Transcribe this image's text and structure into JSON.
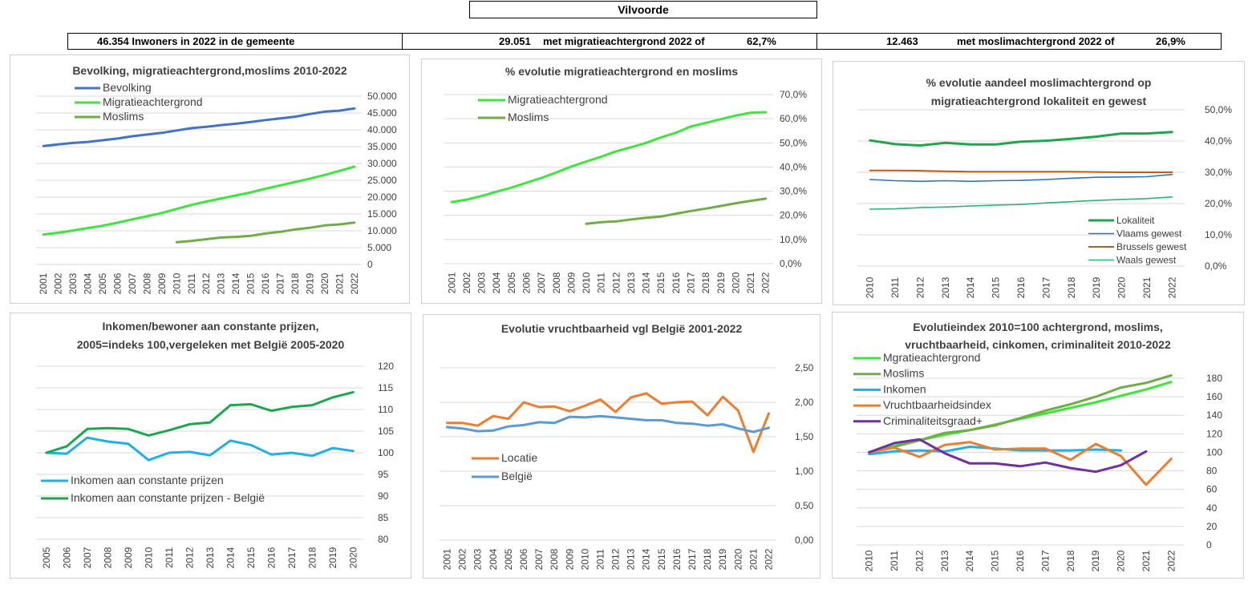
{
  "header": {
    "title": "Vilvoorde",
    "summary": [
      {
        "text": "46.354 Inwoners in 2022 in de gemeente"
      },
      {
        "num": "29.051",
        "text": "met migratieachtergrond 2022 of",
        "pct": "62,7%"
      },
      {
        "num": "12.463",
        "text": "met moslimachtergrond 2022 of",
        "pct": "26,9%"
      }
    ]
  },
  "chart_data": [
    {
      "type": "line",
      "title": [
        "Bevolking, migratieachtergrond,moslims  2010-2022"
      ],
      "x": [
        "2001",
        "2002",
        "2003",
        "2004",
        "2005",
        "2006",
        "2007",
        "2008",
        "2009",
        "2010",
        "2011",
        "2012",
        "2013",
        "2014",
        "2015",
        "2016",
        "2017",
        "2018",
        "2019",
        "2020",
        "2021",
        "2022"
      ],
      "ylim": [
        0,
        50000
      ],
      "yticks": [
        "0",
        "5.000",
        "10.000",
        "15.000",
        "20.000",
        "25.000",
        "30.000",
        "35.000",
        "40.000",
        "45.000",
        "50.000"
      ],
      "legend": "top-left",
      "series": [
        {
          "name": "Bevolking",
          "color": "#4472c4",
          "values": [
            35200,
            35700,
            36100,
            36400,
            36900,
            37400,
            38100,
            38600,
            39100,
            39800,
            40500,
            40900,
            41400,
            41800,
            42300,
            42900,
            43400,
            43900,
            44700,
            45400,
            45700,
            46354
          ]
        },
        {
          "name": "Migratieachtergrond",
          "color": "#3de63d",
          "values": [
            8900,
            9400,
            10100,
            10800,
            11500,
            12400,
            13400,
            14300,
            15300,
            16500,
            17700,
            18700,
            19600,
            20500,
            21400,
            22500,
            23500,
            24500,
            25500,
            26600,
            27800,
            29051
          ]
        },
        {
          "name": "Moslims",
          "color": "#70ad47",
          "values": [
            null,
            null,
            null,
            null,
            null,
            null,
            null,
            null,
            null,
            6600,
            7000,
            7500,
            8000,
            8200,
            8500,
            9200,
            9700,
            10400,
            10900,
            11600,
            11900,
            12463
          ]
        }
      ]
    },
    {
      "type": "line",
      "title": [
        "% evolutie migratieachtergrond  en moslims"
      ],
      "x": [
        "2001",
        "2002",
        "2003",
        "2004",
        "2005",
        "2006",
        "2007",
        "2008",
        "2009",
        "2010",
        "2011",
        "2012",
        "2013",
        "2014",
        "2015",
        "2016",
        "2017",
        "2018",
        "2019",
        "2020",
        "2021",
        "2022"
      ],
      "ylim": [
        0,
        70
      ],
      "yticks": [
        "0,0%",
        "10,0%",
        "20,0%",
        "30,0%",
        "40,0%",
        "50,0%",
        "60,0%",
        "70,0%"
      ],
      "legend": "top-left",
      "series": [
        {
          "name": "Migratieachtergrond",
          "color": "#3de63d",
          "values": [
            25.5,
            26.5,
            28,
            29.8,
            31.5,
            33.5,
            35.5,
            37.8,
            40.2,
            42.3,
            44.3,
            46.5,
            48.2,
            50,
            52.3,
            54.2,
            56.8,
            58.3,
            59.8,
            61.3,
            62.5,
            62.7
          ]
        },
        {
          "name": "Moslims",
          "color": "#70ad47",
          "values": [
            null,
            null,
            null,
            null,
            null,
            null,
            null,
            null,
            null,
            16.5,
            17.2,
            17.5,
            18.3,
            19,
            19.5,
            20.7,
            21.8,
            22.8,
            23.9,
            25,
            26,
            26.9
          ]
        }
      ]
    },
    {
      "type": "line",
      "title": [
        "% evolutie aandeel moslimachtergrond op",
        "migratieachtergrond lokaliteit en gewest"
      ],
      "x": [
        "2010",
        "2011",
        "2012",
        "2013",
        "2014",
        "2015",
        "2016",
        "2017",
        "2018",
        "2019",
        "2020",
        "2021",
        "2022"
      ],
      "ylim": [
        0,
        50
      ],
      "yticks": [
        "0,0%",
        "10,0%",
        "20,0%",
        "30,0%",
        "40,0%",
        "50,0%"
      ],
      "legend": "bottom-right",
      "series": [
        {
          "name": "Lokaliteit",
          "color": "#1fa64d",
          "width": 3,
          "values": [
            40.2,
            39,
            38.6,
            39.4,
            38.9,
            38.9,
            39.8,
            40.1,
            40.7,
            41.4,
            42.4,
            42.4,
            42.9
          ]
        },
        {
          "name": "Vlaams gewest",
          "color": "#2e75b6",
          "width": 1.6,
          "values": [
            27.7,
            27.3,
            27.1,
            27.3,
            27.1,
            27.3,
            27.4,
            27.7,
            28.1,
            28.4,
            28.5,
            28.6,
            29.3
          ]
        },
        {
          "name": "Brussels gewest",
          "color": "#c55a11",
          "width": 2,
          "values": [
            30.6,
            30.6,
            30.5,
            30.3,
            30.2,
            30.2,
            30.2,
            30.2,
            30.2,
            30.1,
            30,
            30,
            30
          ]
        },
        {
          "name": "Waals gewest",
          "color": "#2bb673",
          "width": 1.6,
          "values": [
            18.2,
            18.3,
            18.7,
            18.9,
            19.2,
            19.5,
            19.7,
            20.2,
            20.6,
            21,
            21.3,
            21.6,
            22.1
          ]
        }
      ]
    },
    {
      "type": "line",
      "title": [
        "Inkomen/bewoner aan constante prijzen,",
        "2005=indeks 100,vergeleken met België 2005-2020"
      ],
      "x": [
        "2005",
        "2006",
        "2007",
        "2008",
        "2009",
        "2010",
        "2011",
        "2012",
        "2013",
        "2014",
        "2015",
        "2016",
        "2017",
        "2018",
        "2019",
        "2020"
      ],
      "ylim": [
        80,
        120
      ],
      "yticks": [
        "80",
        "85",
        "90",
        "95",
        "100",
        "105",
        "110",
        "115",
        "120"
      ],
      "legend": "bottom-left",
      "series": [
        {
          "name": "Inkomen aan constante prijzen",
          "color": "#1fb0e6",
          "values": [
            100,
            99.8,
            103.5,
            102.6,
            102.1,
            98.3,
            100,
            100.2,
            99.4,
            102.8,
            101.8,
            99.6,
            100,
            99.3,
            101.1,
            100.4
          ]
        },
        {
          "name": "Inkomen aan constante prijzen - België",
          "color": "#1fa64d",
          "values": [
            100,
            101.5,
            105.5,
            105.7,
            105.5,
            104,
            105.2,
            106.6,
            107,
            111,
            111.2,
            109.7,
            110.6,
            111,
            112.8,
            114
          ]
        }
      ]
    },
    {
      "type": "line",
      "title": [
        "Evolutie vruchtbaarheid vgl België 2001-2022"
      ],
      "x": [
        "2001",
        "2002",
        "2003",
        "2004",
        "2005",
        "2006",
        "2007",
        "2008",
        "2009",
        "2010",
        "2011",
        "2012",
        "2013",
        "2014",
        "2015",
        "2016",
        "2017",
        "2018",
        "2019",
        "2020",
        "2021",
        "2022"
      ],
      "ylim": [
        0,
        2.5
      ],
      "yticks": [
        "0,00",
        "0,50",
        "1,00",
        "1,50",
        "2,00",
        "2,50"
      ],
      "legend": "left",
      "series": [
        {
          "name": "Locatie",
          "color": "#ed7d31",
          "values": [
            1.7,
            1.7,
            1.66,
            1.8,
            1.76,
            2,
            1.93,
            1.94,
            1.87,
            1.95,
            2.04,
            1.86,
            2.07,
            2.13,
            1.98,
            2,
            2.01,
            1.81,
            2.08,
            1.88,
            1.28,
            1.84
          ]
        },
        {
          "name": "België",
          "color": "#5b9bd5",
          "values": [
            1.64,
            1.62,
            1.58,
            1.59,
            1.65,
            1.67,
            1.71,
            1.7,
            1.79,
            1.78,
            1.8,
            1.78,
            1.76,
            1.74,
            1.74,
            1.7,
            1.69,
            1.66,
            1.68,
            1.62,
            1.57,
            1.63
          ]
        }
      ]
    },
    {
      "type": "line",
      "title": [
        "Evolutieindex 2010=100 achtergrond, moslims,",
        "vruchtbaarheid, cinkomen, criminaliteit  2010-2022"
      ],
      "x": [
        "2010",
        "2011",
        "2012",
        "2013",
        "2014",
        "2015",
        "2016",
        "2017",
        "2018",
        "2019",
        "2020",
        "2021",
        "2022"
      ],
      "ylim": [
        0,
        180
      ],
      "yticks": [
        "0",
        "20",
        "40",
        "60",
        "80",
        "100",
        "120",
        "140",
        "160",
        "180"
      ],
      "legend": "top-left",
      "series": [
        {
          "name": "Mgratieachtergrond",
          "color": "#3de63d",
          "values": [
            100,
            107,
            113,
            119,
            124,
            130,
            136,
            142,
            148,
            154,
            161,
            168,
            176
          ]
        },
        {
          "name": "Moslims",
          "color": "#70ad47",
          "values": [
            100,
            106,
            113,
            121,
            124,
            129,
            137,
            145,
            152,
            160,
            170,
            175,
            183
          ]
        },
        {
          "name": "Inkomen",
          "color": "#1fb0e6",
          "values": [
            98,
            101,
            102,
            101,
            106,
            104,
            102,
            102,
            102,
            103,
            102,
            null,
            null
          ]
        },
        {
          "name": "Vruchtbaarheidsindex",
          "color": "#ed7d31",
          "values": [
            100,
            105,
            95,
            108,
            111,
            103,
            104,
            104,
            92,
            109,
            96,
            65,
            93
          ]
        },
        {
          "name": "Criminaliteitsgraad+",
          "color": "#7030a0",
          "values": [
            100,
            110,
            114,
            99,
            88,
            88,
            85,
            89,
            83,
            79,
            86,
            101,
            null
          ]
        }
      ]
    }
  ]
}
